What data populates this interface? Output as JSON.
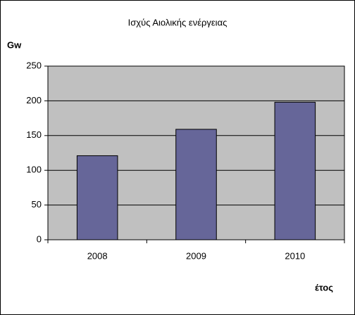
{
  "chart_data": {
    "type": "bar",
    "title": "Ισχύς Αιολικής ενέργειας",
    "y_label": "Gw",
    "x_label": "έτος",
    "categories": [
      "2008",
      "2009",
      "2010"
    ],
    "values": [
      121,
      159,
      198
    ],
    "color": "#666699",
    "ylim": [
      0,
      250
    ],
    "yticks": [
      0,
      50,
      100,
      150,
      200,
      250
    ],
    "grid": true
  }
}
